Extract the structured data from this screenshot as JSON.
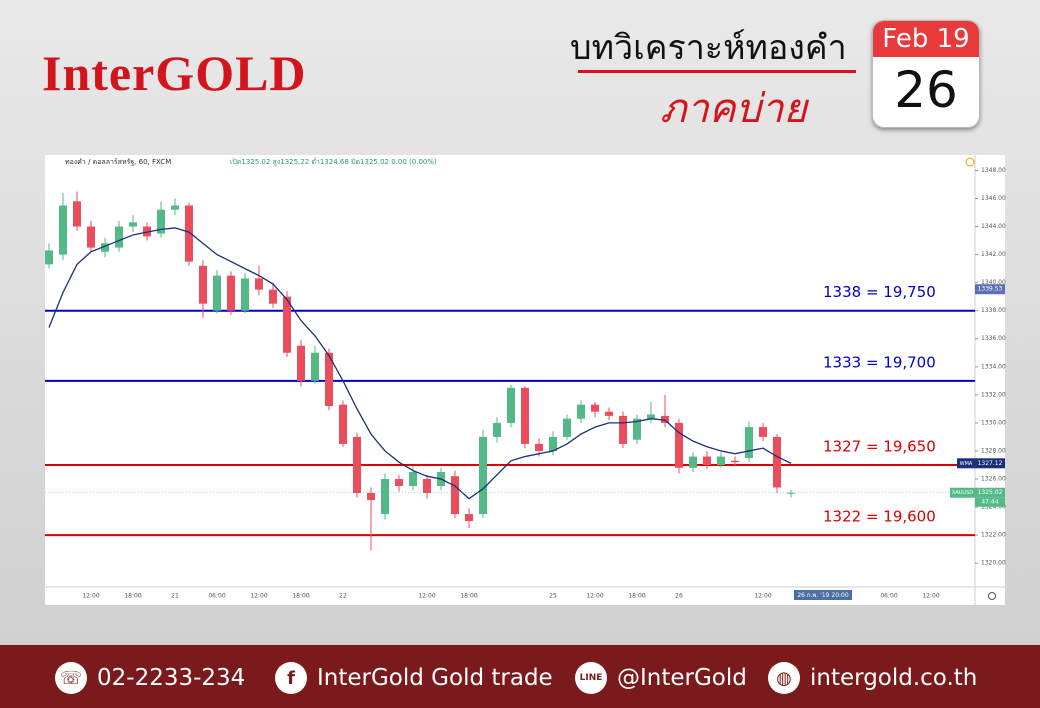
{
  "header": {
    "logo": "InterGOLD",
    "title": "บทวิเคราะห์ทองคำ",
    "subtitle": "ภาคบ่าย",
    "calendar_month": "Feb 19",
    "calendar_day": "26"
  },
  "chart_data": {
    "type": "candlestick",
    "symbol": "ทองคำ / ดอลลาร์สหรัฐ, 60, FXCM",
    "ohlc_text": "เปิด1325.02 สูง1325.22 ต่ำ1324.68 ปิด1325.02 0.00 (0.00%)",
    "categories": [
      null,
      null,
      null,
      "12:00",
      null,
      null,
      "18:00",
      null,
      null,
      "21",
      null,
      null,
      "06:00",
      null,
      null,
      "12:00",
      null,
      null,
      "18:00",
      null,
      null,
      "22",
      null,
      null,
      null,
      null,
      null,
      "12:00",
      null,
      null,
      "18:00",
      null,
      null,
      null,
      null,
      null,
      "25",
      null,
      null,
      "12:00",
      null,
      null,
      "18:00",
      null,
      null,
      "26",
      null,
      null,
      null,
      null,
      null,
      "12:00",
      null,
      null,
      null,
      null,
      null,
      null,
      null,
      null,
      "06:00",
      null,
      null,
      "12:00"
    ],
    "open": [
      1341.3,
      1342,
      1345.8,
      1344,
      1342.2,
      1342.5,
      1344,
      1344,
      1343.5,
      1345.2,
      1345.5,
      1341.2,
      1338,
      1340.5,
      1338,
      1340.3,
      1339.5,
      1339,
      1335.5,
      1333,
      1335,
      1331.3,
      1329,
      1325,
      1323.5,
      1326,
      1325.5,
      1326,
      1325.5,
      1326.2,
      1323.5,
      1323.5,
      1329,
      1330,
      1332.5,
      1328.5,
      1328,
      1329,
      1330.3,
      1331.3,
      1330.8,
      1330.5,
      1328.8,
      1330.3,
      1330.5,
      1330,
      1326.8,
      1327.6,
      1327,
      1327.3,
      1327.5,
      1329.7,
      1329,
      1325.02,
      null,
      null,
      null,
      null,
      null,
      null,
      null,
      null,
      null,
      null
    ],
    "high": [
      1342.8,
      1346.4,
      1346.5,
      1344.4,
      1343.2,
      1344.4,
      1344.8,
      1344.3,
      1345.8,
      1346,
      1345.7,
      1341.6,
      1340.9,
      1340.8,
      1340.7,
      1341.2,
      1340,
      1339.4,
      1335.9,
      1335.5,
      1335.3,
      1331.6,
      1329.3,
      1325.4,
      1326.4,
      1326.3,
      1326.9,
      1326.3,
      1326.8,
      1326.6,
      1323.9,
      1329.5,
      1330.4,
      1332.7,
      1332.6,
      1328.9,
      1329.4,
      1330.6,
      1331.6,
      1331.5,
      1331.1,
      1330.8,
      1330.6,
      1331.5,
      1332,
      1330.3,
      1327.9,
      1328,
      1327.9,
      1327.6,
      1330.1,
      1330,
      1329.2,
      1325.22,
      null,
      null,
      null,
      null,
      null,
      null,
      null,
      null,
      null,
      null
    ],
    "low": [
      1341,
      1341.6,
      1343.7,
      1342.2,
      1341.8,
      1342.2,
      1343.6,
      1343,
      1343.2,
      1344.8,
      1341.2,
      1337.5,
      1337.8,
      1337.7,
      1337.8,
      1339.1,
      1338.2,
      1334.7,
      1332.6,
      1332.8,
      1330.9,
      1328.3,
      1324.7,
      1320.9,
      1323.1,
      1325.1,
      1325.2,
      1324.6,
      1325.2,
      1323.2,
      1322.5,
      1323.2,
      1328.6,
      1329.7,
      1328.2,
      1327.6,
      1327.7,
      1328.8,
      1330,
      1330.4,
      1330.2,
      1328.2,
      1328.5,
      1330,
      1329.7,
      1326.4,
      1326.5,
      1326.7,
      1326.8,
      1326.9,
      1327.2,
      1328.7,
      1325,
      1324.68,
      null,
      null,
      null,
      null,
      null,
      null,
      null,
      null,
      null,
      null
    ],
    "close": [
      1342.3,
      1345.5,
      1344,
      1342.5,
      1342.8,
      1344,
      1344.3,
      1343.3,
      1345.2,
      1345.5,
      1341.5,
      1338.5,
      1340.5,
      1338,
      1340.3,
      1339.5,
      1338.5,
      1335,
      1333,
      1335,
      1331.2,
      1328.5,
      1325,
      1324.5,
      1326,
      1325.5,
      1326.5,
      1325,
      1326.5,
      1323.5,
      1323,
      1329,
      1330,
      1332.5,
      1328.5,
      1328,
      1329,
      1330.3,
      1331.3,
      1330.8,
      1330.5,
      1328.5,
      1330.3,
      1330.6,
      1330,
      1326.8,
      1327.6,
      1327,
      1327.6,
      1327.2,
      1329.7,
      1329,
      1325.4,
      1325.02,
      null,
      null,
      null,
      null,
      null,
      null,
      null,
      null,
      null,
      null
    ],
    "up_color": "#53b987",
    "down_color": "#eb4d5c",
    "ma": {
      "name": "WMA",
      "color": "#1c2f7a",
      "values": [
        1336.8,
        1339.3,
        1341.3,
        1342.2,
        1342.6,
        1343,
        1343.4,
        1343.6,
        1343.8,
        1343.9,
        1343.6,
        1342.8,
        1342,
        1341.5,
        1341,
        1340.5,
        1339.9,
        1338.8,
        1337.3,
        1336.2,
        1334.8,
        1333,
        1331,
        1329.2,
        1328,
        1327.2,
        1326.6,
        1326.2,
        1326,
        1325.5,
        1324.6,
        1325.3,
        1326.3,
        1327.3,
        1327.6,
        1327.8,
        1328,
        1328.5,
        1329.2,
        1329.7,
        1330,
        1330,
        1330.1,
        1330.3,
        1330.2,
        1329.3,
        1328.7,
        1328.3,
        1328,
        1327.8,
        1328,
        1328.2,
        1327.6,
        1327.12,
        null,
        null,
        null,
        null,
        null,
        null,
        null,
        null,
        null,
        null
      ]
    },
    "ylim": [
      1318.3,
      1349.1
    ],
    "yticks": [
      {
        "value": 1320,
        "label": "1320.00"
      },
      {
        "value": 1322,
        "label": "1322.00"
      },
      {
        "value": 1324,
        "label": "1324.00"
      },
      {
        "value": 1326,
        "label": "1326.00"
      },
      {
        "value": 1328,
        "label": "1328.00"
      },
      {
        "value": 1330,
        "label": "1330.00"
      },
      {
        "value": 1332,
        "label": "1332.00"
      },
      {
        "value": 1334,
        "label": "1334.00"
      },
      {
        "value": 1336,
        "label": "1336.00"
      },
      {
        "value": 1338,
        "label": "1338.00"
      },
      {
        "value": 1340,
        "label": "1340.00"
      },
      {
        "value": 1342,
        "label": "1342.00"
      },
      {
        "value": 1344,
        "label": "1344.00"
      },
      {
        "value": 1346,
        "label": "1346.00"
      },
      {
        "value": 1348,
        "label": "1348.00"
      }
    ],
    "grid": false,
    "levels": [
      {
        "value": 1338,
        "label": "1338 = 19,750",
        "color": "#0000cc"
      },
      {
        "value": 1333,
        "label": "1333 = 19,700",
        "color": "#0000cc"
      },
      {
        "value": 1327,
        "label": "1327 = 19,650",
        "color": "#dd0000"
      },
      {
        "value": 1322,
        "label": "1322 = 19,600",
        "color": "#dd0000"
      }
    ],
    "price_markers": [
      {
        "value": 1339.53,
        "color": "#5b6fb5"
      },
      {
        "name": "XAUUSD",
        "value": 1325.02,
        "color": "#53b987"
      }
    ],
    "countdown": "47:44",
    "cursor_label": "26 ก.พ. '19 20:00"
  },
  "footer": {
    "phone": "02-2233-234",
    "facebook": "InterGold Gold trade",
    "line": "@InterGold",
    "website": "intergold.co.th"
  }
}
